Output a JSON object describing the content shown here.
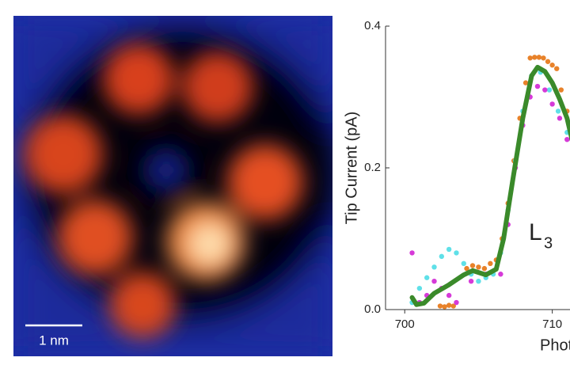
{
  "image": {
    "scale_bar_label": "1 nm"
  },
  "chart_data": {
    "type": "line",
    "ylabel": "Tip Current (pA)",
    "xlabel": "Photon",
    "annotation": {
      "text": "L",
      "subscript": "3"
    },
    "xlim": [
      698.7,
      711.2
    ],
    "ylim": [
      0,
      0.4
    ],
    "xticks": [
      700,
      710
    ],
    "yticks": [
      {
        "value": 0,
        "label": "0.0"
      },
      0.2,
      0.4
    ],
    "series": [
      {
        "color": "#e8822a",
        "style": "dots",
        "x": [
          702.4,
          702.7,
          703.0,
          703.3,
          704.2,
          704.6,
          705.0,
          705.4,
          705.8,
          706.2,
          706.6,
          707.0,
          707.4,
          707.8,
          708.2,
          708.5,
          708.8,
          709.1,
          709.4,
          709.7,
          710.0,
          710.3,
          710.6,
          711.0
        ],
        "values": [
          0.005,
          0.004,
          0.006,
          0.005,
          0.058,
          0.062,
          0.06,
          0.058,
          0.065,
          0.07,
          0.1,
          0.15,
          0.21,
          0.27,
          0.32,
          0.355,
          0.356,
          0.356,
          0.355,
          0.35,
          0.345,
          0.34,
          0.31,
          0.28
        ]
      },
      {
        "color": "#5fe0e8",
        "style": "dots",
        "x": [
          700.5,
          701.0,
          701.5,
          702.0,
          702.5,
          703.0,
          703.5,
          704.0,
          704.5,
          705.0,
          705.5,
          706.0,
          706.5,
          707.0,
          707.5,
          708.0,
          708.6,
          709.2,
          709.8,
          710.4,
          711.0
        ],
        "values": [
          0.01,
          0.03,
          0.045,
          0.06,
          0.075,
          0.085,
          0.08,
          0.065,
          0.05,
          0.04,
          0.045,
          0.05,
          0.08,
          0.14,
          0.21,
          0.28,
          0.33,
          0.335,
          0.31,
          0.28,
          0.25
        ]
      },
      {
        "color": "#d63ad8",
        "style": "dots",
        "x": [
          700.5,
          701.0,
          701.5,
          702.0,
          702.5,
          703.0,
          703.5,
          704.5,
          705.5,
          706.5,
          707.0,
          707.5,
          708.0,
          708.5,
          709.0,
          709.5,
          710.0,
          710.5,
          711.0
        ],
        "values": [
          0.08,
          0.01,
          0.02,
          0.04,
          0.03,
          0.02,
          0.01,
          0.04,
          0.05,
          0.05,
          0.12,
          0.2,
          0.26,
          0.3,
          0.315,
          0.31,
          0.29,
          0.27,
          0.24
        ]
      },
      {
        "color": "#3a8a2a",
        "style": "line",
        "x": [
          700.5,
          700.8,
          701.3,
          702.0,
          703.0,
          704.0,
          704.6,
          705.5,
          706.2,
          706.7,
          707.3,
          708.0,
          708.6,
          709.0,
          709.5,
          710.0,
          710.5,
          711.0,
          711.5
        ],
        "values": [
          0.017,
          0.007,
          0.009,
          0.023,
          0.035,
          0.049,
          0.055,
          0.049,
          0.057,
          0.1,
          0.18,
          0.27,
          0.33,
          0.342,
          0.336,
          0.32,
          0.297,
          0.27,
          0.225
        ]
      }
    ]
  }
}
